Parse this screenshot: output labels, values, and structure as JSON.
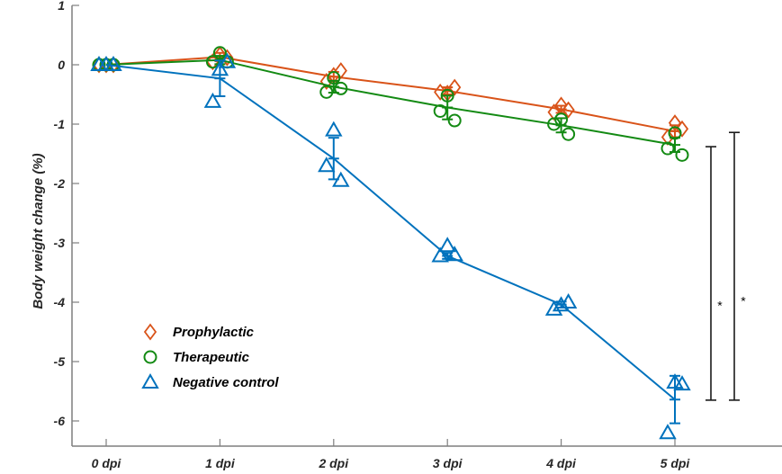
{
  "chart_data": {
    "type": "line",
    "title": "",
    "xlabel": "",
    "ylabel": "Body weight change (%)",
    "categories": [
      "0 dpi",
      "1 dpi",
      "2 dpi",
      "3 dpi",
      "4 dpi",
      "5 dpi"
    ],
    "ylim": [
      -6.5,
      1
    ],
    "yticks": [
      1,
      0,
      -1,
      -2,
      -3,
      -4,
      -5,
      -6
    ],
    "ytick_labels": [
      "1",
      "0",
      "-1",
      "-2",
      "-3",
      "-4",
      "-5",
      "-6"
    ],
    "grid": false,
    "legend_position": "bottom-left",
    "series": [
      {
        "name": "Prophylactic",
        "color": "#D95319",
        "marker": "diamond",
        "mean": [
          0,
          0.13,
          -0.2,
          -0.44,
          -0.75,
          -1.12
        ],
        "error": [
          0,
          0.07,
          0.08,
          0.06,
          0.06,
          0.1
        ],
        "points": [
          [
            0,
            0,
            0
          ],
          [
            0.05,
            0.17,
            0.12
          ],
          [
            -0.28,
            -0.18,
            -0.1
          ],
          [
            -0.46,
            -0.48,
            -0.38
          ],
          [
            -0.8,
            -0.68,
            -0.76
          ],
          [
            -1.22,
            -0.98,
            -1.08
          ]
        ]
      },
      {
        "name": "Therapeutic",
        "color": "#138A13",
        "marker": "circle",
        "mean": [
          0,
          0.08,
          -0.37,
          -0.72,
          -1.02,
          -1.35
        ],
        "error": [
          0,
          0.07,
          0.1,
          0.2,
          0.12,
          0.12
        ],
        "points": [
          [
            0,
            0,
            0
          ],
          [
            0.05,
            0.2,
            0.05
          ],
          [
            -0.46,
            -0.22,
            -0.4
          ],
          [
            -0.78,
            -0.52,
            -0.94
          ],
          [
            -1.0,
            -0.92,
            -1.17
          ],
          [
            -1.41,
            -1.15,
            -1.52
          ]
        ]
      },
      {
        "name": "Negative control",
        "color": "#0072BD",
        "marker": "triangle",
        "mean": [
          0,
          -0.23,
          -1.58,
          -3.22,
          -4.04,
          -5.64
        ],
        "error": [
          0,
          0.3,
          0.35,
          0.05,
          0.05,
          0.4
        ],
        "points": [
          [
            0,
            0,
            0
          ],
          [
            -0.62,
            -0.08,
            0.05
          ],
          [
            -1.7,
            -1.1,
            -1.95
          ],
          [
            -3.22,
            -3.05,
            -3.2
          ],
          [
            -4.12,
            -4.05,
            -4.0
          ],
          [
            -6.2,
            -5.35,
            -5.38
          ]
        ]
      }
    ],
    "annotations": [
      {
        "text": "*",
        "comparison": "Negative control vs Therapeutic at 5 dpi"
      },
      {
        "text": "*",
        "comparison": "Negative control vs Prophylactic at 5 dpi"
      }
    ]
  }
}
